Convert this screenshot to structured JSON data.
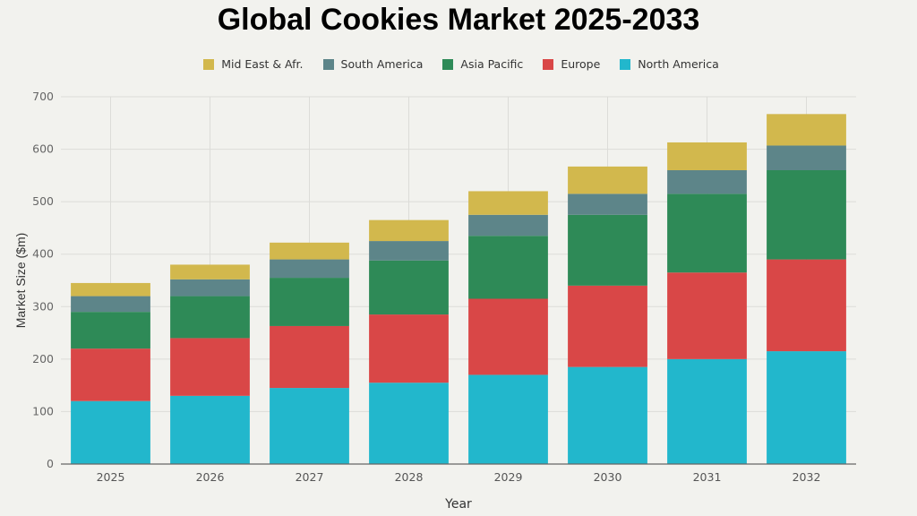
{
  "chart_data": {
    "type": "bar",
    "stacked": true,
    "title": "Global Cookies Market 2025-2033",
    "xlabel": "Year",
    "ylabel": "Market Size ($m)",
    "ylim": [
      0,
      700
    ],
    "yticks": [
      0,
      100,
      200,
      300,
      400,
      500,
      600,
      700
    ],
    "grid": true,
    "legend_position": "top",
    "categories": [
      "2025",
      "2026",
      "2027",
      "2028",
      "2029",
      "2030",
      "2031",
      "2032"
    ],
    "series": [
      {
        "name": "North America",
        "color": "#22b7cc",
        "values": [
          120,
          130,
          145,
          155,
          170,
          185,
          200,
          215
        ]
      },
      {
        "name": "Europe",
        "color": "#d94747",
        "values": [
          100,
          110,
          118,
          130,
          145,
          155,
          165,
          175
        ]
      },
      {
        "name": "Asia Pacific",
        "color": "#2e8a57",
        "values": [
          70,
          80,
          92,
          103,
          120,
          135,
          150,
          170
        ]
      },
      {
        "name": "South America",
        "color": "#5d8589",
        "values": [
          30,
          32,
          35,
          37,
          40,
          40,
          45,
          47
        ]
      },
      {
        "name": "Mid East & Afr.",
        "color": "#d2b84d",
        "values": [
          25,
          28,
          32,
          40,
          45,
          52,
          53,
          60
        ]
      }
    ],
    "legend_order": [
      "Mid East & Afr.",
      "South America",
      "Asia Pacific",
      "Europe",
      "North America"
    ]
  }
}
